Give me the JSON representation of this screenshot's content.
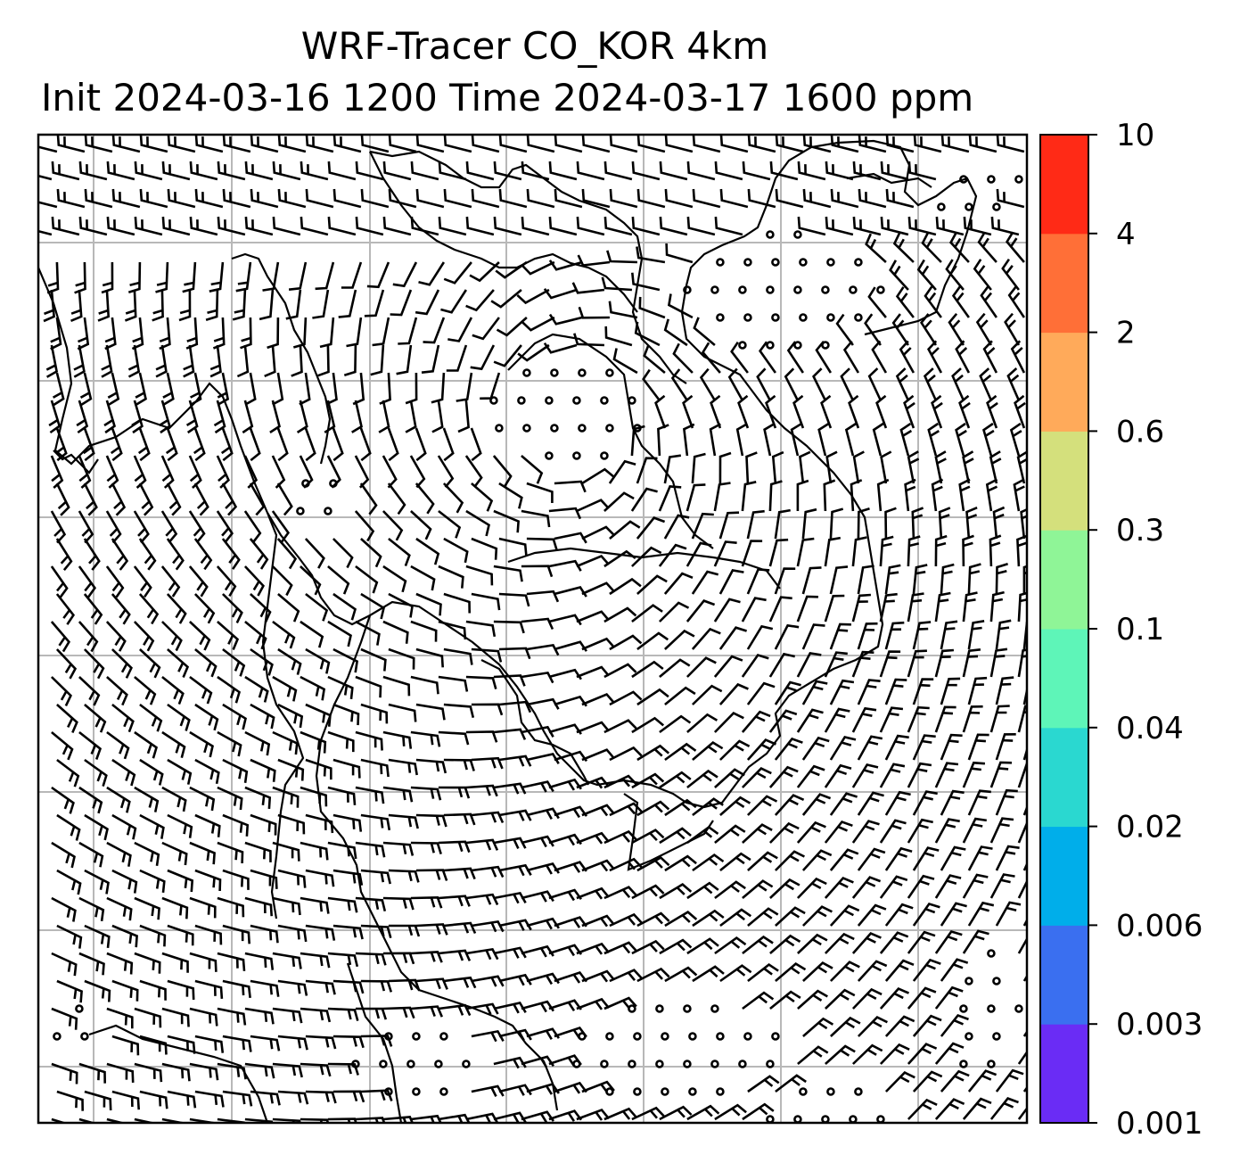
{
  "title": {
    "line1": "WRF-Tracer CO_KOR 4km",
    "line2": "Init 2024-03-16 1200 Time 2024-03-17 1600 ppm"
  },
  "colorbar": {
    "levels": [
      "0.001",
      "0.003",
      "0.006",
      "0.02",
      "0.04",
      "0.1",
      "0.3",
      "0.6",
      "2",
      "4",
      "10"
    ],
    "colors": [
      "#6a2cf5",
      "#3a6ff0",
      "#00aeea",
      "#2ad8d0",
      "#5ef5b8",
      "#8ff597",
      "#d4e07c",
      "#ffaa5a",
      "#ff6f37",
      "#ff2a16"
    ]
  },
  "map": {
    "gridlines": true,
    "symbols": [
      "wind-barbs",
      "calm-circles",
      "coastlines"
    ]
  }
}
